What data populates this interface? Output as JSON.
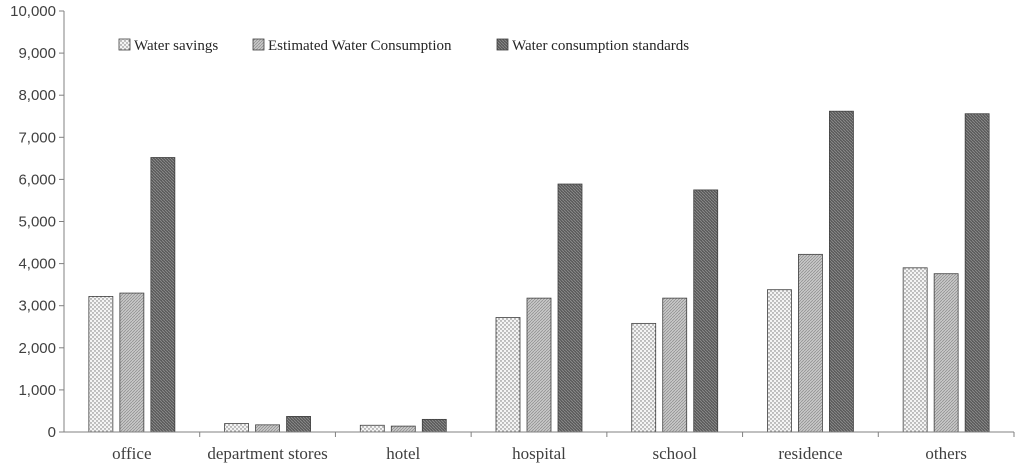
{
  "chart_data": {
    "type": "bar",
    "categories": [
      "office",
      "department stores",
      "hotel",
      "hospital",
      "school",
      "residence",
      "others"
    ],
    "series": [
      {
        "name": "Water savings",
        "values": [
          3220,
          200,
          160,
          2720,
          2580,
          3380,
          3900
        ],
        "pattern": "dots",
        "color": "#f2f2f2"
      },
      {
        "name": "Estimated Water Consumption",
        "values": [
          3300,
          170,
          140,
          3180,
          3180,
          4220,
          3760
        ],
        "pattern": "fine-hatch",
        "color": "#bfbfbf"
      },
      {
        "name": "Water consumption standards",
        "values": [
          6520,
          370,
          300,
          5890,
          5750,
          7620,
          7560
        ],
        "pattern": "dark-hatch",
        "color": "#595959"
      }
    ],
    "ylim": [
      0,
      10000
    ],
    "yticks": [
      "0",
      "1,000",
      "2,000",
      "3,000",
      "4,000",
      "5,000",
      "6,000",
      "7,000",
      "8,000",
      "9,000",
      "10,000"
    ],
    "title": "",
    "xlabel": "",
    "ylabel": "",
    "grid": false,
    "legend_position": "top-left"
  }
}
